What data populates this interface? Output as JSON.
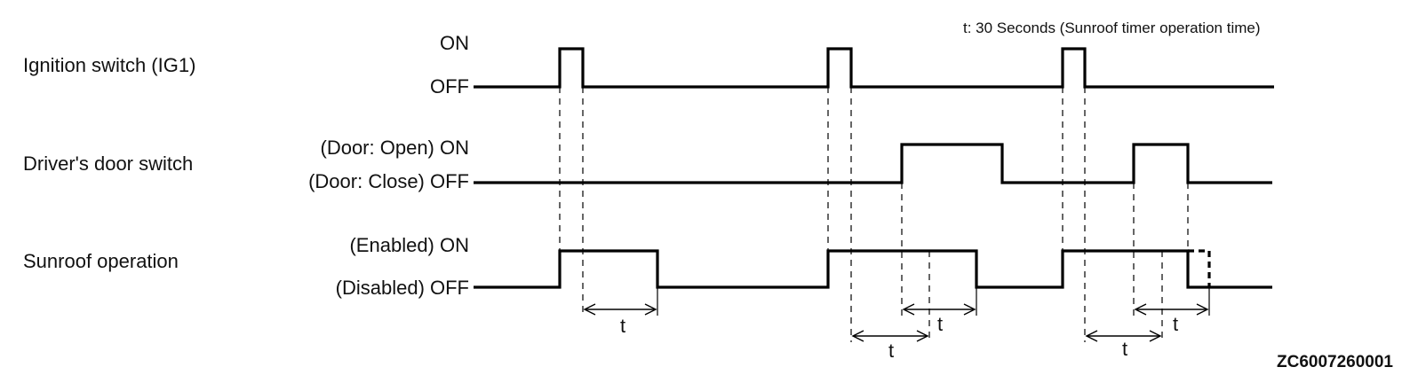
{
  "note": "t: 30 Seconds (Sunroof timer operation time)",
  "figure_code": "ZC6007260001",
  "signals": [
    {
      "name": "Ignition switch (IG1)",
      "on_label": "ON",
      "off_label": "OFF",
      "state_sequence": [
        "OFF",
        "ON",
        "OFF",
        "ON",
        "OFF",
        "ON",
        "OFF"
      ]
    },
    {
      "name": "Driver's door switch",
      "on_label": "(Door: Open) ON",
      "off_label": "(Door: Close) OFF",
      "state_sequence": [
        "OFF",
        "ON",
        "OFF",
        "ON",
        "OFF"
      ]
    },
    {
      "name": "Sunroof operation",
      "on_label": "(Enabled) ON",
      "off_label": "(Disabled) OFF",
      "state_sequence": [
        "OFF",
        "ON",
        "OFF",
        "ON",
        "OFF",
        "ON",
        "OFF"
      ],
      "alternate_end": "dashed: remains ON until timer t expires"
    }
  ],
  "timer_symbol": "t",
  "timer_labels": [
    "t",
    "t",
    "t",
    "t",
    "t"
  ]
}
